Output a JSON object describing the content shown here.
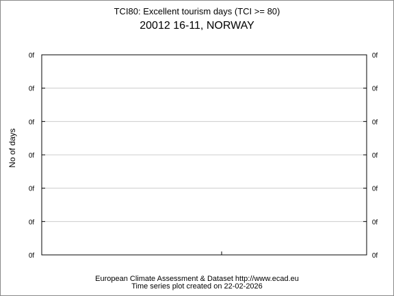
{
  "chart_data": {
    "type": "line",
    "title": "TCI80: Excellent tourism days (TCI >= 80)",
    "subtitle": "20012 16-11, NORWAY",
    "ylabel": "No of days",
    "xlabel": "",
    "y_tick_labels": [
      "0f",
      "0f",
      "0f",
      "0f",
      "0f",
      "0f",
      "0f"
    ],
    "y_tick_labels_right": [
      "0f",
      "0f",
      "0f",
      "0f",
      "0f",
      "0f",
      "0f"
    ],
    "x_tick_labels": [],
    "series": [],
    "grid": true,
    "legend": "none"
  },
  "footer": {
    "source": "European Climate Assessment & Dataset  http://www.ecad.eu",
    "created": "Time series plot created on 22-02-2026"
  },
  "colors": {
    "background": "#ffffff",
    "grid": "#cccccc",
    "axis": "#000000",
    "frame": "#888888"
  }
}
